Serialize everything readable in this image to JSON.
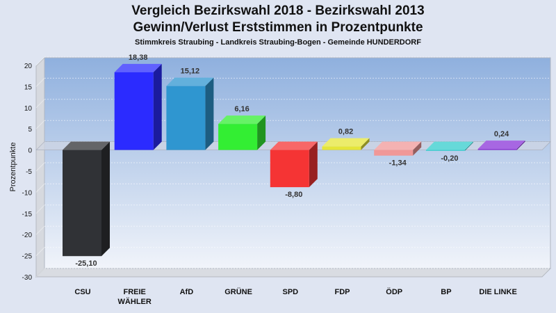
{
  "chart_data": {
    "type": "bar",
    "title_line1": "Vergleich Bezirkswahl 2018 - Bezirkswahl 2013",
    "title_line2": "Gewinn/Verlust Erststimmen in Prozentpunkte",
    "subtitle": "Stimmkreis Straubing - Landkreis Straubing-Bogen - Gemeinde HUNDERDORF",
    "ylabel": "Prozentpunkte",
    "xlabel": "",
    "ylim": [
      -30,
      20
    ],
    "yticks": [
      20,
      15,
      10,
      5,
      0,
      -5,
      -10,
      -15,
      -20,
      -25,
      -30
    ],
    "grid": true,
    "categories": [
      "CSU",
      "FREIE WÄHLER",
      "AfD",
      "GRÜNE",
      "SPD",
      "FDP",
      "ÖDP",
      "BP",
      "DIE LINKE"
    ],
    "category_lines": [
      [
        "CSU"
      ],
      [
        "FREIE",
        "WÄHLER"
      ],
      [
        "AfD"
      ],
      [
        "GRÜNE"
      ],
      [
        "SPD"
      ],
      [
        "FDP"
      ],
      [
        "ÖDP"
      ],
      [
        "BP"
      ],
      [
        "DIE LINKE"
      ]
    ],
    "values": [
      -25.1,
      18.38,
      15.12,
      6.16,
      -8.8,
      0.82,
      -1.34,
      -0.2,
      0.24
    ],
    "value_labels": [
      "-25,10",
      "18,38",
      "15,12",
      "6,16",
      "-8,80",
      "0,82",
      "-1,34",
      "-0,20",
      "0,24"
    ],
    "colors": [
      "#303236",
      "#2b2bff",
      "#2f96d0",
      "#33ee33",
      "#f53434",
      "#e5e53a",
      "#f09898",
      "#33cccc",
      "#8a34d8"
    ]
  }
}
